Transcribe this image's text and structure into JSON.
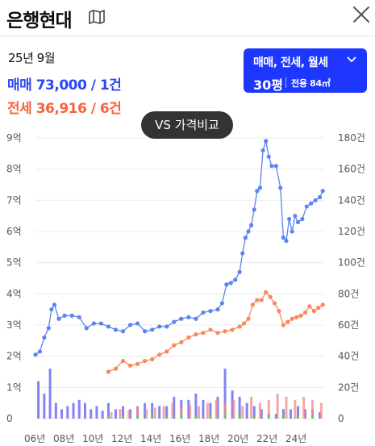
{
  "header": {
    "title": "은행현대",
    "map_icon": "map-icon",
    "close_icon": "close-icon"
  },
  "summary": {
    "date": "25년 9월",
    "trade": "매매 73,000 / 1건",
    "lease": "전세 36,916 / 6건"
  },
  "filter": {
    "type_label": "매매, 전세, 월세",
    "size_label": "30평",
    "area_label": "전용 84㎡"
  },
  "compare_button": {
    "label": "VS 가격비교"
  },
  "colors": {
    "trade": "#5b84f0",
    "lease": "#f9885a",
    "trade_volume": "#5a5af0",
    "lease_volume": "#f08a8a",
    "monthly_volume": "#5cc95c",
    "accent": "#1e37ff"
  },
  "chart_data": {
    "type": "line",
    "x_tick_labels": [
      "06년",
      "08년",
      "10년",
      "12년",
      "14년",
      "16년",
      "18년",
      "20년",
      "22년",
      "24년"
    ],
    "y_left_labels": [
      "0",
      "1억",
      "2억",
      "3억",
      "4억",
      "5억",
      "6억",
      "7억",
      "8억",
      "9억"
    ],
    "y_right_labels": [
      "0",
      "20건",
      "40건",
      "60건",
      "80건",
      "100건",
      "120건",
      "140건",
      "160건",
      "180건"
    ],
    "y_left_range": [
      0,
      9
    ],
    "y_right_range": [
      0,
      180
    ],
    "x_range": [
      2006,
      2025.8
    ],
    "series": [
      {
        "key": "trade",
        "x": [
          2006.0,
          2006.3,
          2006.6,
          2006.9,
          2007.1,
          2007.3,
          2007.6,
          2008.0,
          2008.5,
          2009.0,
          2009.5,
          2010.0,
          2010.5,
          2011.0,
          2011.5,
          2012.0,
          2012.5,
          2013.0,
          2013.5,
          2014.0,
          2014.5,
          2015.0,
          2015.5,
          2016.0,
          2016.5,
          2017.0,
          2017.5,
          2018.0,
          2018.5,
          2018.8,
          2019.1,
          2019.4,
          2019.7,
          2020.0,
          2020.2,
          2020.4,
          2020.6,
          2020.8,
          2021.0,
          2021.2,
          2021.4,
          2021.6,
          2021.8,
          2022.0,
          2022.2,
          2022.5,
          2022.8,
          2023.0,
          2023.2,
          2023.4,
          2023.6,
          2023.8,
          2024.0,
          2024.3,
          2024.6,
          2024.9,
          2025.2,
          2025.5,
          2025.7
        ],
        "values": [
          2.05,
          2.15,
          2.6,
          2.9,
          3.5,
          3.65,
          3.2,
          3.3,
          3.3,
          3.25,
          2.9,
          3.05,
          3.05,
          2.95,
          2.85,
          2.8,
          3.0,
          3.05,
          2.8,
          2.85,
          2.95,
          2.95,
          3.1,
          3.2,
          3.25,
          3.2,
          3.4,
          3.45,
          3.5,
          3.7,
          4.3,
          4.35,
          4.45,
          4.7,
          5.3,
          5.8,
          6.0,
          6.2,
          6.7,
          7.3,
          7.4,
          8.6,
          8.9,
          8.4,
          8.1,
          8.1,
          7.4,
          5.8,
          5.7,
          6.4,
          6.0,
          6.5,
          6.3,
          6.4,
          6.8,
          6.9,
          7.0,
          7.1,
          7.3
        ]
      },
      {
        "key": "lease",
        "x": [
          2011.0,
          2011.5,
          2012.0,
          2012.5,
          2013.0,
          2013.5,
          2014.0,
          2014.5,
          2015.0,
          2015.5,
          2016.0,
          2016.5,
          2017.0,
          2017.5,
          2018.0,
          2018.5,
          2019.0,
          2019.5,
          2020.0,
          2020.3,
          2020.6,
          2020.9,
          2021.2,
          2021.5,
          2021.8,
          2022.1,
          2022.4,
          2022.7,
          2023.0,
          2023.3,
          2023.6,
          2023.9,
          2024.2,
          2024.5,
          2024.8,
          2025.1,
          2025.4,
          2025.7
        ],
        "values": [
          1.5,
          1.6,
          1.85,
          1.7,
          1.75,
          1.85,
          1.9,
          2.05,
          2.15,
          2.35,
          2.45,
          2.6,
          2.7,
          2.75,
          2.85,
          2.75,
          2.8,
          2.85,
          2.95,
          3.05,
          3.2,
          3.65,
          3.8,
          3.8,
          4.05,
          3.9,
          3.7,
          3.45,
          3.0,
          3.1,
          3.2,
          3.25,
          3.3,
          3.4,
          3.6,
          3.45,
          3.55,
          3.65
        ]
      }
    ],
    "volume_series": [
      {
        "key": "trade_volume",
        "x": [
          2006.2,
          2006.6,
          2007.0,
          2007.4,
          2007.8,
          2008.2,
          2008.6,
          2009.0,
          2009.4,
          2009.8,
          2010.2,
          2010.6,
          2011.0,
          2011.5,
          2012.0,
          2012.5,
          2013.0,
          2013.5,
          2014.0,
          2014.5,
          2015.0,
          2015.5,
          2016.0,
          2016.5,
          2017.0,
          2017.5,
          2018.0,
          2018.5,
          2019.0,
          2019.5,
          2020.0,
          2020.5,
          2021.0,
          2021.5,
          2022.0,
          2022.5,
          2023.0,
          2023.5,
          2024.0,
          2024.5,
          2025.0,
          2025.5
        ],
        "values": [
          24,
          16,
          32,
          10,
          6,
          8,
          10,
          12,
          10,
          6,
          8,
          5,
          10,
          6,
          8,
          6,
          8,
          10,
          10,
          8,
          8,
          14,
          12,
          12,
          16,
          12,
          10,
          14,
          32,
          18,
          14,
          10,
          8,
          6,
          3,
          3,
          6,
          6,
          8,
          6,
          6,
          4
        ]
      },
      {
        "key": "lease_volume",
        "x": [
          2011.2,
          2011.8,
          2012.4,
          2013.0,
          2013.6,
          2014.2,
          2014.8,
          2015.4,
          2016.0,
          2016.6,
          2017.2,
          2017.8,
          2018.4,
          2019.0,
          2019.6,
          2020.2,
          2020.8,
          2021.4,
          2022.0,
          2022.6,
          2023.2,
          2023.8,
          2024.4,
          2025.0,
          2025.6
        ],
        "values": [
          4,
          6,
          5,
          8,
          6,
          7,
          8,
          10,
          7,
          9,
          8,
          10,
          12,
          10,
          12,
          8,
          14,
          10,
          12,
          16,
          14,
          12,
          14,
          12,
          10
        ]
      },
      {
        "key": "monthly_volume",
        "x": [
          2011.0,
          2012.0,
          2013.0,
          2014.0,
          2015.0,
          2016.0,
          2017.0,
          2018.0,
          2019.0,
          2020.0,
          2021.0,
          2022.0,
          2023.0,
          2024.0,
          2025.0
        ],
        "values": [
          2,
          2,
          2,
          3,
          2,
          3,
          2,
          3,
          3,
          3,
          2,
          2,
          3,
          2,
          2
        ]
      }
    ]
  }
}
